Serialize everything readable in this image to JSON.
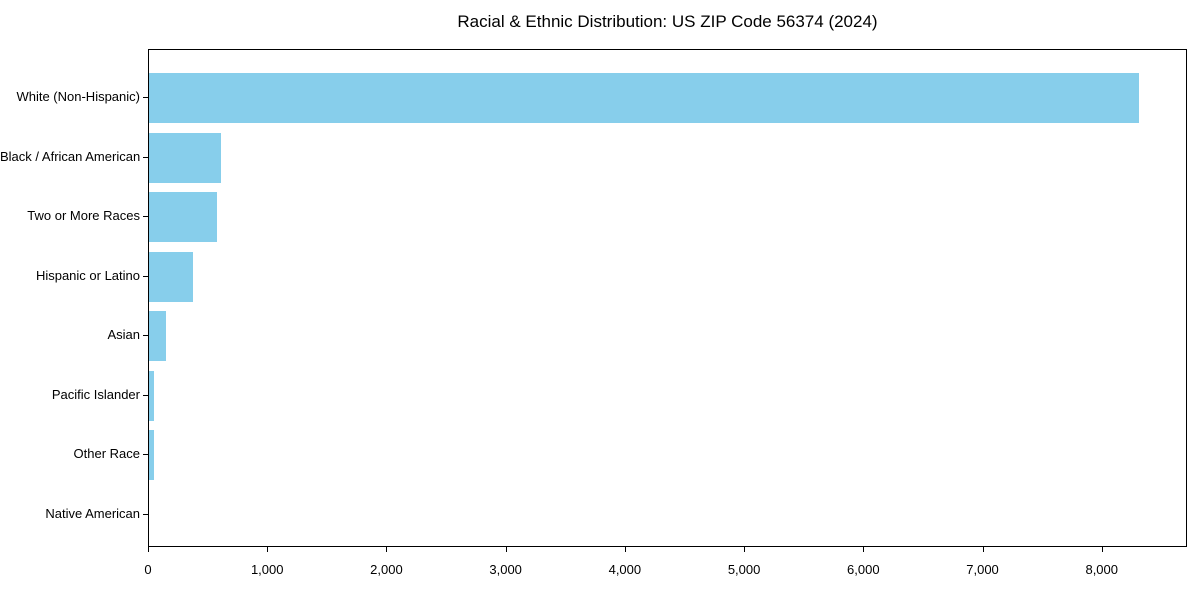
{
  "chart_data": {
    "type": "bar",
    "orientation": "horizontal",
    "title": "Racial & Ethnic Distribution: US ZIP Code 56374 (2024)",
    "categories": [
      "White (Non-Hispanic)",
      "Black / African American",
      "Two or More Races",
      "Hispanic or Latino",
      "Asian",
      "Pacific Islander",
      "Other Race",
      "Native American"
    ],
    "values": [
      8300,
      600,
      570,
      370,
      140,
      40,
      45,
      0
    ],
    "xlabel": "",
    "ylabel": "",
    "xlim": [
      0,
      8715
    ],
    "xticks": [
      0,
      1000,
      2000,
      3000,
      4000,
      5000,
      6000,
      7000,
      8000
    ],
    "xtick_labels": [
      "0",
      "1,000",
      "2,000",
      "3,000",
      "4,000",
      "5,000",
      "6,000",
      "7,000",
      "8,000"
    ],
    "bar_color": "#87CEEB",
    "background_color": "#ffffff",
    "text_color": "#000000",
    "grid": false,
    "legend": "none"
  }
}
